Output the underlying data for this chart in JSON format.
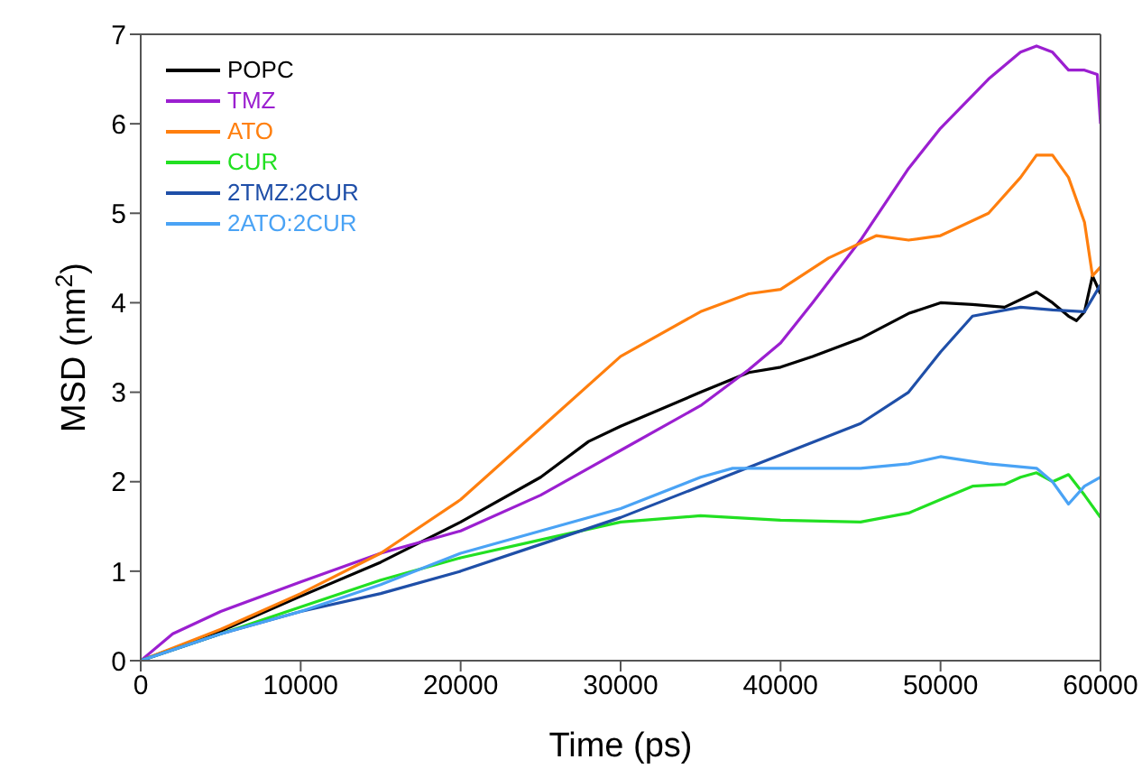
{
  "chart_data": {
    "type": "line",
    "xlabel": "Time (ps)",
    "ylabel": "MSD (nm$^{2}$)",
    "xlim": [
      0,
      60000
    ],
    "xticks": [
      0,
      10000,
      20000,
      30000,
      40000,
      50000,
      60000
    ],
    "ylim": [
      0,
      7
    ],
    "yticks": [
      0,
      1,
      2,
      3,
      4,
      5,
      6,
      7
    ],
    "grid": false,
    "legend": "top left",
    "series": [
      {
        "name": "POPC",
        "color": "#000000",
        "x": [
          0,
          5000,
          10000,
          15000,
          20000,
          25000,
          28000,
          30000,
          35000,
          38000,
          40000,
          42000,
          45000,
          48000,
          50000,
          52000,
          54000,
          56000,
          57000,
          58000,
          58500,
          59000,
          59500,
          60000
        ],
        "values": [
          0,
          0.33,
          0.72,
          1.1,
          1.55,
          2.05,
          2.45,
          2.62,
          3.0,
          3.22,
          3.28,
          3.4,
          3.6,
          3.88,
          4.0,
          3.98,
          3.95,
          4.12,
          4.0,
          3.85,
          3.8,
          3.9,
          4.3,
          4.1
        ]
      },
      {
        "name": "TMZ",
        "color": "#9b1fd0",
        "x": [
          0,
          2000,
          5000,
          10000,
          15000,
          20000,
          25000,
          30000,
          35000,
          38000,
          40000,
          42000,
          45000,
          48000,
          50000,
          53000,
          55000,
          56000,
          57000,
          58000,
          59000,
          59800,
          60000
        ],
        "values": [
          0,
          0.3,
          0.55,
          0.88,
          1.2,
          1.45,
          1.85,
          2.35,
          2.85,
          3.25,
          3.55,
          4.0,
          4.7,
          5.5,
          5.95,
          6.5,
          6.8,
          6.87,
          6.8,
          6.6,
          6.6,
          6.55,
          6.0
        ]
      },
      {
        "name": "ATO",
        "color": "#ff7f0e",
        "x": [
          0,
          5000,
          10000,
          15000,
          20000,
          25000,
          30000,
          35000,
          38000,
          40000,
          43000,
          46000,
          48000,
          50000,
          53000,
          55000,
          56000,
          57000,
          58000,
          59000,
          59500,
          60000
        ],
        "values": [
          0,
          0.35,
          0.75,
          1.2,
          1.8,
          2.6,
          3.4,
          3.9,
          4.1,
          4.15,
          4.5,
          4.75,
          4.7,
          4.75,
          5.0,
          5.4,
          5.65,
          5.65,
          5.4,
          4.9,
          4.3,
          4.4
        ]
      },
      {
        "name": "CUR",
        "color": "#22e022",
        "x": [
          0,
          5000,
          10000,
          15000,
          20000,
          25000,
          30000,
          35000,
          40000,
          45000,
          48000,
          50000,
          52000,
          54000,
          55000,
          56000,
          57000,
          58000,
          59000,
          60000
        ],
        "values": [
          0,
          0.3,
          0.6,
          0.9,
          1.15,
          1.35,
          1.55,
          1.62,
          1.57,
          1.55,
          1.65,
          1.8,
          1.95,
          1.97,
          2.05,
          2.1,
          2.0,
          2.08,
          1.85,
          1.6
        ]
      },
      {
        "name": "2TMZ:2CUR",
        "color": "#1f4fa8",
        "x": [
          0,
          5000,
          10000,
          15000,
          20000,
          25000,
          30000,
          35000,
          40000,
          45000,
          48000,
          50000,
          52000,
          55000,
          57000,
          59000,
          60000
        ],
        "values": [
          0,
          0.3,
          0.55,
          0.75,
          1.0,
          1.3,
          1.6,
          1.95,
          2.3,
          2.65,
          3.0,
          3.45,
          3.85,
          3.95,
          3.92,
          3.9,
          4.2
        ]
      },
      {
        "name": "2ATO:2CUR",
        "color": "#4aa3f5",
        "x": [
          0,
          5000,
          10000,
          15000,
          20000,
          25000,
          30000,
          35000,
          37000,
          40000,
          45000,
          48000,
          50000,
          53000,
          56000,
          57000,
          58000,
          59000,
          60000
        ],
        "values": [
          0,
          0.3,
          0.55,
          0.85,
          1.2,
          1.45,
          1.7,
          2.05,
          2.15,
          2.15,
          2.15,
          2.2,
          2.28,
          2.2,
          2.15,
          2.0,
          1.75,
          1.95,
          2.05
        ]
      }
    ]
  }
}
